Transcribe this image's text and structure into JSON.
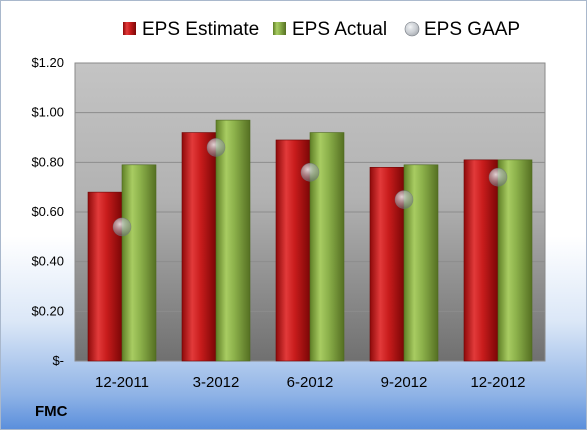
{
  "chart_data": {
    "type": "bar",
    "categories": [
      "12-2011",
      "3-2012",
      "6-2012",
      "9-2012",
      "12-2012"
    ],
    "series": [
      {
        "name": "EPS Estimate",
        "values": [
          0.68,
          0.92,
          0.89,
          0.78,
          0.81
        ],
        "color": "#cc1f1f"
      },
      {
        "name": "EPS Actual",
        "values": [
          0.79,
          0.97,
          0.92,
          0.79,
          0.81
        ],
        "color": "#8db347"
      }
    ],
    "gaap": {
      "name": "EPS GAAP",
      "values": [
        0.54,
        0.86,
        0.76,
        0.65,
        0.74
      ],
      "color": "#b9bfc8"
    },
    "ylim": [
      0,
      1.2
    ],
    "yticks": [
      0,
      0.2,
      0.4,
      0.6,
      0.8,
      1.0,
      1.2
    ],
    "ytick_labels": [
      "$-",
      "$0.20",
      "$0.40",
      "$0.60",
      "$0.80",
      "$1.00",
      "$1.20"
    ],
    "legend_position": "top",
    "grid": true
  },
  "ticker": "FMC"
}
